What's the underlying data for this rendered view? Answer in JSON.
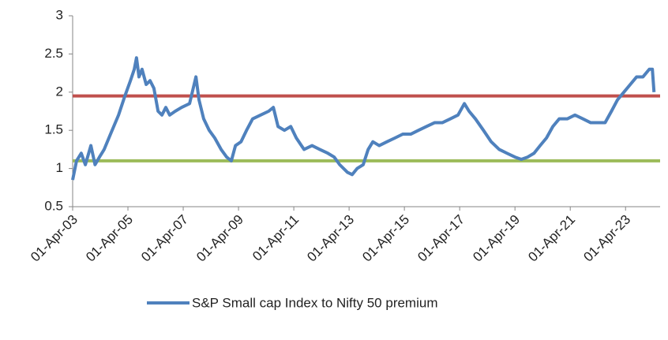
{
  "chart_data": {
    "type": "line",
    "xlim": [
      2003.25,
      2024.5
    ],
    "xticks": [
      {
        "value": 2003.25,
        "label": "01-Apr-03"
      },
      {
        "value": 2005.25,
        "label": "01-Apr-05"
      },
      {
        "value": 2007.25,
        "label": "01-Apr-07"
      },
      {
        "value": 2009.25,
        "label": "01-Apr-09"
      },
      {
        "value": 2011.25,
        "label": "01-Apr-11"
      },
      {
        "value": 2013.25,
        "label": "01-Apr-13"
      },
      {
        "value": 2015.25,
        "label": "01-Apr-15"
      },
      {
        "value": 2017.25,
        "label": "01-Apr-17"
      },
      {
        "value": 2019.25,
        "label": "01-Apr-19"
      },
      {
        "value": 2021.25,
        "label": "01-Apr-21"
      },
      {
        "value": 2023.25,
        "label": "01-Apr-23"
      }
    ],
    "ylim": [
      0.5,
      3
    ],
    "yticks": [
      0.5,
      1,
      {
        "value": 1.5,
        "label": "1.5"
      },
      2,
      {
        "value": 2.5,
        "label": "2.5"
      },
      3
    ],
    "reference_lines": [
      {
        "value": 1.95,
        "color": "#c0504d"
      },
      {
        "value": 1.1,
        "color": "#9bbb59"
      }
    ],
    "legend": "bottom",
    "x": [
      2003.25,
      2003.39,
      2003.56,
      2003.71,
      2003.91,
      2004.06,
      2004.22,
      2004.39,
      2004.62,
      2004.91,
      2005.14,
      2005.34,
      2005.48,
      2005.56,
      2005.65,
      2005.76,
      2005.91,
      2006.05,
      2006.19,
      2006.34,
      2006.48,
      2006.62,
      2006.76,
      2006.96,
      2007.19,
      2007.48,
      2007.71,
      2007.82,
      2007.99,
      2008.19,
      2008.39,
      2008.62,
      2008.82,
      2008.99,
      2009.14,
      2009.34,
      2009.54,
      2009.76,
      2010.05,
      2010.34,
      2010.51,
      2010.68,
      2010.91,
      2011.14,
      2011.34,
      2011.62,
      2011.91,
      2012.19,
      2012.48,
      2012.71,
      2012.91,
      2013.19,
      2013.36,
      2013.54,
      2013.76,
      2013.94,
      2014.11,
      2014.34,
      2014.62,
      2014.91,
      2015.19,
      2015.48,
      2015.76,
      2016.05,
      2016.34,
      2016.62,
      2016.91,
      2017.19,
      2017.42,
      2017.59,
      2017.82,
      2018.11,
      2018.39,
      2018.68,
      2018.96,
      2019.25,
      2019.48,
      2019.71,
      2019.94,
      2020.16,
      2020.39,
      2020.62,
      2020.85,
      2021.14,
      2021.42,
      2021.71,
      2021.99,
      2022.28,
      2022.51,
      2022.74,
      2022.96,
      2023.19,
      2023.42,
      2023.65,
      2023.88,
      2024.11,
      2024.22,
      2024.28
    ],
    "series": [
      {
        "name": "S&P Small cap Index to Nifty 50 premium",
        "color": "#4f81bd",
        "values": [
          0.85,
          1.1,
          1.2,
          1.05,
          1.3,
          1.05,
          1.15,
          1.25,
          1.45,
          1.7,
          1.95,
          2.15,
          2.3,
          2.45,
          2.2,
          2.3,
          2.1,
          2.15,
          2.05,
          1.75,
          1.7,
          1.8,
          1.7,
          1.75,
          1.8,
          1.85,
          2.2,
          1.9,
          1.65,
          1.5,
          1.4,
          1.25,
          1.15,
          1.1,
          1.3,
          1.35,
          1.5,
          1.65,
          1.7,
          1.75,
          1.8,
          1.55,
          1.5,
          1.55,
          1.4,
          1.25,
          1.3,
          1.25,
          1.2,
          1.15,
          1.05,
          0.95,
          0.92,
          1.0,
          1.05,
          1.25,
          1.35,
          1.3,
          1.35,
          1.4,
          1.45,
          1.45,
          1.5,
          1.55,
          1.6,
          1.6,
          1.65,
          1.7,
          1.85,
          1.75,
          1.65,
          1.5,
          1.35,
          1.25,
          1.2,
          1.15,
          1.12,
          1.15,
          1.2,
          1.3,
          1.4,
          1.55,
          1.65,
          1.65,
          1.7,
          1.65,
          1.6,
          1.6,
          1.6,
          1.75,
          1.9,
          2.0,
          2.1,
          2.2,
          2.2,
          2.3,
          2.3,
          2.0
        ]
      }
    ]
  }
}
